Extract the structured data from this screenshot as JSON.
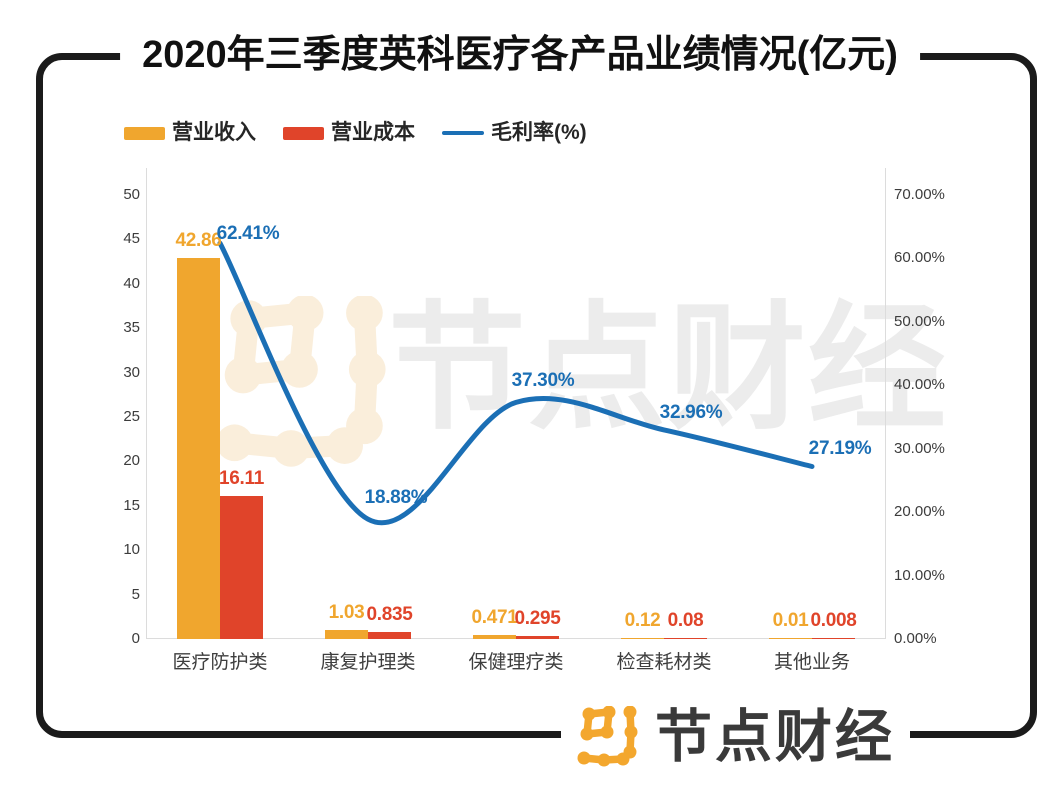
{
  "header": {
    "title": "2020年三季度英科医疗各产品业绩情况(亿元)"
  },
  "legend": {
    "items": [
      {
        "label": "营业收入",
        "type": "bar",
        "color": "#F0A62E"
      },
      {
        "label": "营业成本",
        "type": "bar",
        "color": "#E0442A"
      },
      {
        "label": "毛利率(%)",
        "type": "line",
        "color": "#1B6FB5"
      }
    ]
  },
  "watermark": {
    "text": "节点财经",
    "logo": "jiedian-node-pattern"
  },
  "footer": {
    "brand": "节点财经",
    "logo": "jiedian-node-pattern"
  },
  "colors": {
    "revenue_bar": "#F0A62E",
    "cost_bar": "#E0442A",
    "margin_line": "#1B6FB5",
    "frame": "#1b1b1b",
    "axis_line": "#dcdcdc",
    "axis_text": "#3c3c3c",
    "watermark_gray": "#ececec",
    "watermark_orange": "#faeedb",
    "footer_text": "#3a3a3a",
    "footer_logo_orange": "#f3a72e"
  },
  "chart_data": {
    "type": "bar+line combo",
    "title": "2020年三季度英科医疗各产品业绩情况(亿元)",
    "categories": [
      "医疗防护类",
      "康复护理类",
      "保健理疗类",
      "检查耗材类",
      "其他业务"
    ],
    "series": [
      {
        "name": "营业收入",
        "type": "bar",
        "axis": "left",
        "color": "#F0A62E",
        "values": [
          42.86,
          1.03,
          0.471,
          0.12,
          0.01
        ],
        "labels": [
          "42.86",
          "1.03",
          "0.471",
          "0.12",
          "0.01"
        ]
      },
      {
        "name": "营业成本",
        "type": "bar",
        "axis": "left",
        "color": "#E0442A",
        "values": [
          16.11,
          0.835,
          0.295,
          0.08,
          0.008
        ],
        "labels": [
          "16.11",
          "0.835",
          "0.295",
          "0.08",
          "0.008"
        ]
      },
      {
        "name": "毛利率(%)",
        "type": "line",
        "axis": "right",
        "color": "#1B6FB5",
        "values": [
          62.41,
          18.88,
          37.3,
          32.96,
          27.19
        ],
        "labels": [
          "62.41%",
          "18.88%",
          "37.30%",
          "32.96%",
          "27.19%"
        ]
      }
    ],
    "left_axis": {
      "min": 0,
      "max": 50,
      "step": 5,
      "ticks": [
        "0",
        "5",
        "10",
        "15",
        "20",
        "25",
        "30",
        "35",
        "40",
        "45",
        "50"
      ]
    },
    "right_axis": {
      "min": 0,
      "max": 70,
      "step": 10,
      "ticks": [
        "0.00%",
        "10.00%",
        "20.00%",
        "30.00%",
        "40.00%",
        "50.00%",
        "60.00%",
        "70.00%"
      ]
    },
    "grid": false,
    "legend_position": "top-left",
    "line_smooth": true
  }
}
